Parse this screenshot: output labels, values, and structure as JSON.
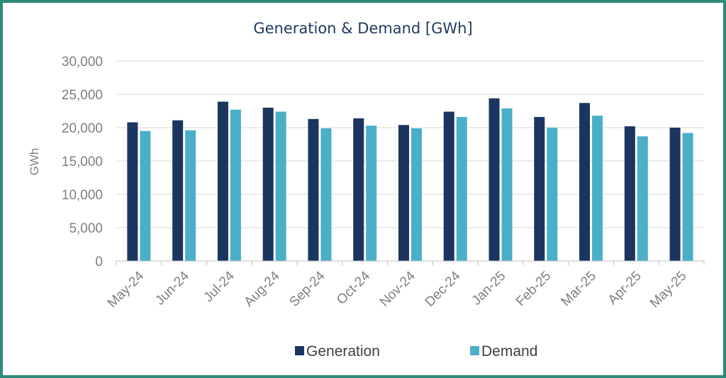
{
  "chart_data": {
    "type": "bar",
    "title": "Generation & Demand [GWh]",
    "xlabel": "",
    "ylabel": "GWh",
    "ylim": [
      0,
      30000
    ],
    "yticks": [
      0,
      5000,
      10000,
      15000,
      20000,
      25000,
      30000
    ],
    "ytick_labels": [
      "0",
      "5,000",
      "10,000",
      "15,000",
      "20,000",
      "25,000",
      "30,000"
    ],
    "categories": [
      "May-24",
      "Jun-24",
      "Jul-24",
      "Aug-24",
      "Sep-24",
      "Oct-24",
      "Nov-24",
      "Dec-24",
      "Jan-25",
      "Feb-25",
      "Mar-25",
      "Apr-25",
      "May-25"
    ],
    "series": [
      {
        "name": "Generation",
        "color": "#1B3560",
        "values": [
          20800,
          21100,
          23900,
          23000,
          21300,
          21400,
          20400,
          22400,
          24400,
          21600,
          23700,
          20200,
          20000
        ]
      },
      {
        "name": "Demand",
        "color": "#4BAFC8",
        "values": [
          19500,
          19600,
          22700,
          22400,
          19900,
          20300,
          19900,
          21600,
          22900,
          20000,
          21800,
          18700,
          19200
        ]
      }
    ],
    "grid": true,
    "legend": "bottom-center"
  }
}
